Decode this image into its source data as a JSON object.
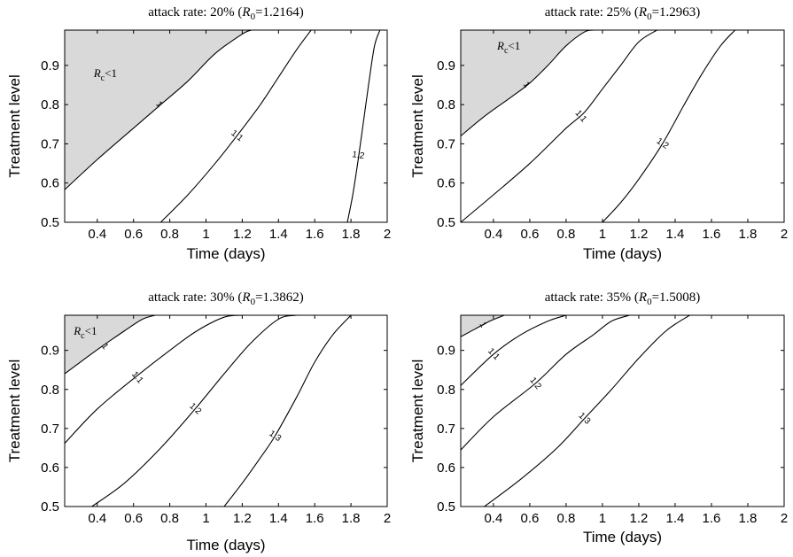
{
  "chart_data": [
    {
      "type": "line",
      "title_prefix": "attack rate: 20% (",
      "title_r": "R",
      "title_sub": "0",
      "title_suffix": "=1.2164)",
      "xlabel": "Time (days)",
      "ylabel": "Treatment level",
      "xlim": [
        0.22,
        2.0
      ],
      "ylim": [
        0.5,
        0.99
      ],
      "xticks": [
        "0.4",
        "0.6",
        "0.8",
        "1",
        "1.2",
        "1.4",
        "1.6",
        "1.8",
        "2"
      ],
      "yticks": [
        "0.5",
        "0.6",
        "0.7",
        "0.8",
        "0.9"
      ],
      "shaded_label": "R",
      "shaded_label_sub": "c",
      "shaded_label_suffix": "<1",
      "shaded_label_pos": [
        0.38,
        0.87
      ],
      "contours": [
        {
          "label": "1",
          "label_at": [
            0.74,
            0.8
          ],
          "points": [
            [
              0.22,
              0.583
            ],
            [
              0.4,
              0.66
            ],
            [
              0.6,
              0.74
            ],
            [
              0.75,
              0.8
            ],
            [
              0.9,
              0.86
            ],
            [
              1.05,
              0.93
            ],
            [
              1.2,
              0.98
            ],
            [
              1.25,
              0.99
            ]
          ]
        },
        {
          "label": "1.1",
          "label_at": [
            1.17,
            0.72
          ],
          "points": [
            [
              0.75,
              0.5
            ],
            [
              0.9,
              0.57
            ],
            [
              1.05,
              0.65
            ],
            [
              1.17,
              0.72
            ],
            [
              1.3,
              0.8
            ],
            [
              1.4,
              0.87
            ],
            [
              1.5,
              0.94
            ],
            [
              1.58,
              0.99
            ]
          ]
        },
        {
          "label": "1.2",
          "label_at": [
            1.84,
            0.67
          ],
          "points": [
            [
              1.78,
              0.5
            ],
            [
              1.81,
              0.57
            ],
            [
              1.84,
              0.66
            ],
            [
              1.87,
              0.76
            ],
            [
              1.9,
              0.86
            ],
            [
              1.93,
              0.95
            ],
            [
              1.96,
              0.99
            ]
          ]
        }
      ]
    },
    {
      "type": "line",
      "title_prefix": "attack rate: 25% (",
      "title_r": "R",
      "title_sub": "0",
      "title_suffix": "=1.2963)",
      "xlabel": "Time (days)",
      "ylabel": "Treatment level",
      "xlim": [
        0.22,
        2.0
      ],
      "ylim": [
        0.5,
        0.99
      ],
      "xticks": [
        "0.4",
        "0.6",
        "0.8",
        "1",
        "1.2",
        "1.4",
        "1.6",
        "1.8",
        "2"
      ],
      "yticks": [
        "0.5",
        "0.6",
        "0.7",
        "0.8",
        "0.9"
      ],
      "shaded_label": "R",
      "shaded_label_sub": "c",
      "shaded_label_suffix": "<1",
      "shaded_label_pos": [
        0.42,
        0.94
      ],
      "contours": [
        {
          "label": "1",
          "label_at": [
            0.58,
            0.85
          ],
          "points": [
            [
              0.22,
              0.72
            ],
            [
              0.35,
              0.77
            ],
            [
              0.5,
              0.82
            ],
            [
              0.6,
              0.855
            ],
            [
              0.7,
              0.9
            ],
            [
              0.8,
              0.95
            ],
            [
              0.9,
              0.985
            ],
            [
              0.95,
              0.99
            ]
          ]
        },
        {
          "label": "1.1",
          "label_at": [
            0.88,
            0.77
          ],
          "points": [
            [
              0.22,
              0.5
            ],
            [
              0.4,
              0.57
            ],
            [
              0.6,
              0.65
            ],
            [
              0.8,
              0.74
            ],
            [
              0.9,
              0.78
            ],
            [
              1.0,
              0.84
            ],
            [
              1.1,
              0.9
            ],
            [
              1.2,
              0.96
            ],
            [
              1.3,
              0.99
            ]
          ]
        },
        {
          "label": "1.2",
          "label_at": [
            1.33,
            0.7
          ],
          "points": [
            [
              1.0,
              0.5
            ],
            [
              1.1,
              0.55
            ],
            [
              1.2,
              0.61
            ],
            [
              1.33,
              0.7
            ],
            [
              1.45,
              0.8
            ],
            [
              1.55,
              0.88
            ],
            [
              1.65,
              0.95
            ],
            [
              1.73,
              0.99
            ]
          ]
        }
      ]
    },
    {
      "type": "line",
      "title_prefix": "attack rate: 30% (",
      "title_r": "R",
      "title_sub": "0",
      "title_suffix": "=1.3862)",
      "xlabel": "Time (days)",
      "ylabel": "Treatment level",
      "xlim": [
        0.22,
        2.0
      ],
      "ylim": [
        0.5,
        0.99
      ],
      "xticks": [
        "0.4",
        "0.6",
        "0.8",
        "1",
        "1.2",
        "1.4",
        "1.6",
        "1.8",
        "2"
      ],
      "yticks": [
        "0.5",
        "0.6",
        "0.7",
        "0.8",
        "0.9"
      ],
      "shaded_label": "R",
      "shaded_label_sub": "c",
      "shaded_label_suffix": "<1",
      "shaded_label_pos": [
        0.27,
        0.94
      ],
      "contours": [
        {
          "label": "1",
          "label_at": [
            0.44,
            0.91
          ],
          "points": [
            [
              0.22,
              0.84
            ],
            [
              0.35,
              0.885
            ],
            [
              0.44,
              0.915
            ],
            [
              0.55,
              0.95
            ],
            [
              0.65,
              0.98
            ],
            [
              0.72,
              0.99
            ]
          ]
        },
        {
          "label": "1.1",
          "label_at": [
            0.62,
            0.83
          ],
          "points": [
            [
              0.22,
              0.662
            ],
            [
              0.4,
              0.75
            ],
            [
              0.62,
              0.835
            ],
            [
              0.8,
              0.9
            ],
            [
              0.95,
              0.95
            ],
            [
              1.1,
              0.985
            ],
            [
              1.2,
              0.99
            ]
          ]
        },
        {
          "label": "1.2",
          "label_at": [
            0.94,
            0.75
          ],
          "points": [
            [
              0.37,
              0.5
            ],
            [
              0.55,
              0.56
            ],
            [
              0.75,
              0.65
            ],
            [
              0.94,
              0.75
            ],
            [
              1.1,
              0.84
            ],
            [
              1.25,
              0.92
            ],
            [
              1.4,
              0.98
            ],
            [
              1.5,
              0.99
            ]
          ]
        },
        {
          "label": "1.3",
          "label_at": [
            1.38,
            0.68
          ],
          "points": [
            [
              1.1,
              0.5
            ],
            [
              1.2,
              0.56
            ],
            [
              1.3,
              0.625
            ],
            [
              1.38,
              0.68
            ],
            [
              1.5,
              0.78
            ],
            [
              1.6,
              0.87
            ],
            [
              1.7,
              0.94
            ],
            [
              1.8,
              0.99
            ]
          ]
        }
      ]
    },
    {
      "type": "line",
      "title_prefix": "attack rate: 35% (",
      "title_r": "R",
      "title_sub": "0",
      "title_suffix": "=1.5008)",
      "xlabel": "Time (days)",
      "ylabel": "Treatment level",
      "xlim": [
        0.22,
        2.0
      ],
      "ylim": [
        0.5,
        0.99
      ],
      "xticks": [
        "0.4",
        "0.6",
        "0.8",
        "1",
        "1.2",
        "1.4",
        "1.6",
        "1.8",
        "2"
      ],
      "yticks": [
        "0.5",
        "0.6",
        "0.7",
        "0.8",
        "0.9"
      ],
      "shaded_label": "",
      "contours": [
        {
          "label": "1",
          "label_at": [
            0.34,
            0.965
          ],
          "points": [
            [
              0.22,
              0.935
            ],
            [
              0.3,
              0.955
            ],
            [
              0.38,
              0.975
            ],
            [
              0.46,
              0.99
            ]
          ]
        },
        {
          "label": "1.1",
          "label_at": [
            0.4,
            0.89
          ],
          "points": [
            [
              0.22,
              0.81
            ],
            [
              0.4,
              0.89
            ],
            [
              0.55,
              0.94
            ],
            [
              0.7,
              0.975
            ],
            [
              0.8,
              0.99
            ]
          ]
        },
        {
          "label": "1.2",
          "label_at": [
            0.63,
            0.815
          ],
          "points": [
            [
              0.22,
              0.645
            ],
            [
              0.4,
              0.73
            ],
            [
              0.63,
              0.815
            ],
            [
              0.8,
              0.89
            ],
            [
              0.95,
              0.94
            ],
            [
              1.05,
              0.975
            ],
            [
              1.15,
              0.99
            ]
          ]
        },
        {
          "label": "1.3",
          "label_at": [
            0.9,
            0.725
          ],
          "points": [
            [
              0.35,
              0.5
            ],
            [
              0.55,
              0.57
            ],
            [
              0.75,
              0.65
            ],
            [
              0.9,
              0.725
            ],
            [
              1.05,
              0.8
            ],
            [
              1.2,
              0.88
            ],
            [
              1.35,
              0.95
            ],
            [
              1.48,
              0.99
            ]
          ]
        }
      ]
    }
  ]
}
